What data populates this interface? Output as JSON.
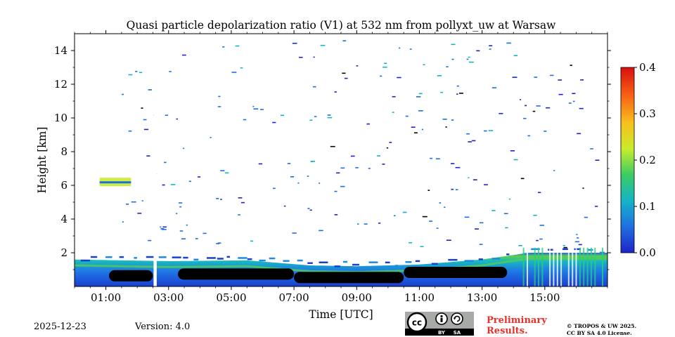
{
  "chart_data": {
    "type": "heatmap",
    "title": "Quasi particle depolarization ratio (V1) at 532 nm from pollyxt_uw at Warsaw",
    "xlabel": "Time [UTC]",
    "ylabel": "Height [km]",
    "xlim_hours": [
      0.0,
      17.0
    ],
    "ylim_km": [
      0.0,
      15.0
    ],
    "x_ticks": [
      {
        "value": 1,
        "label": "01:00"
      },
      {
        "value": 3,
        "label": "03:00"
      },
      {
        "value": 5,
        "label": "05:00"
      },
      {
        "value": 7,
        "label": "07:00"
      },
      {
        "value": 9,
        "label": "09:00"
      },
      {
        "value": 11,
        "label": "11:00"
      },
      {
        "value": 13,
        "label": "13:00"
      },
      {
        "value": 15,
        "label": "15:00"
      }
    ],
    "y_ticks": [
      {
        "value": 2,
        "label": "2"
      },
      {
        "value": 4,
        "label": "4"
      },
      {
        "value": 6,
        "label": "6"
      },
      {
        "value": 8,
        "label": "8"
      },
      {
        "value": 10,
        "label": "10"
      },
      {
        "value": 12,
        "label": "12"
      },
      {
        "value": 14,
        "label": "14"
      }
    ],
    "colorbar": {
      "range": [
        0.0,
        0.4
      ],
      "ticks": [
        {
          "value": 0.0,
          "label": "0.0"
        },
        {
          "value": 0.1,
          "label": "0.1"
        },
        {
          "value": 0.2,
          "label": "0.2"
        },
        {
          "value": 0.3,
          "label": "0.3"
        },
        {
          "value": 0.4,
          "label": "0.4"
        }
      ],
      "colormap": [
        "#1e24c8",
        "#1f6fe0",
        "#14b4c8",
        "#3ccc64",
        "#c8ec2c",
        "#f8c01c",
        "#f86014",
        "#d81010"
      ]
    },
    "features": {
      "boundary_layer_top_km": [
        {
          "t": 0.0,
          "h": 1.6
        },
        {
          "t": 3.0,
          "h": 1.5
        },
        {
          "t": 5.5,
          "h": 1.55
        },
        {
          "t": 7.5,
          "h": 1.25
        },
        {
          "t": 9.0,
          "h": 1.2
        },
        {
          "t": 11.0,
          "h": 1.3
        },
        {
          "t": 13.0,
          "h": 1.6
        },
        {
          "t": 14.5,
          "h": 2.0
        }
      ],
      "black_cloud_band_km": [
        {
          "t0": 1.1,
          "t1": 2.5,
          "h": 0.8
        },
        {
          "t0": 3.3,
          "t1": 7.0,
          "h": 0.9
        },
        {
          "t0": 7.0,
          "t1": 10.5,
          "h": 0.7
        },
        {
          "t0": 10.5,
          "t1": 13.8,
          "h": 1.0
        }
      ],
      "elevated_layer": {
        "t0": 0.8,
        "t1": 1.8,
        "h": 6.2,
        "value": 0.2
      },
      "data_gap_hours": [
        2.52,
        2.62
      ]
    }
  },
  "footer": {
    "date": "2025-12-23",
    "version": "Version: 4.0",
    "license_badge": {
      "cc": "cc",
      "by": "BY",
      "sa": "SA"
    },
    "preliminary_line1": "Preliminary",
    "preliminary_line2": "Results.",
    "copyright_line1": "© TROPOS & UW 2025.",
    "copyright_line2": "CC BY SA 4.0 License."
  }
}
